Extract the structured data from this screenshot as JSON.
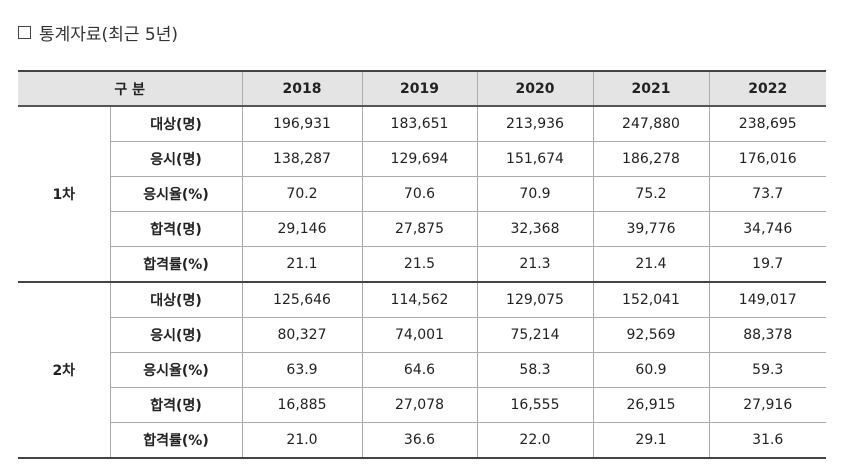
{
  "heading": "통계자료(최근 5년)",
  "table": {
    "header": {
      "category": "구 분",
      "years": [
        "2018",
        "2019",
        "2020",
        "2021",
        "2022"
      ]
    },
    "groups": [
      {
        "label": "1차",
        "rows": [
          {
            "label": "대상(명)",
            "values": [
              "196,931",
              "183,651",
              "213,936",
              "247,880",
              "238,695"
            ]
          },
          {
            "label": "응시(명)",
            "values": [
              "138,287",
              "129,694",
              "151,674",
              "186,278",
              "176,016"
            ]
          },
          {
            "label": "응시율(%)",
            "values": [
              "70.2",
              "70.6",
              "70.9",
              "75.2",
              "73.7"
            ]
          },
          {
            "label": "합격(명)",
            "values": [
              "29,146",
              "27,875",
              "32,368",
              "39,776",
              "34,746"
            ]
          },
          {
            "label": "합격률(%)",
            "values": [
              "21.1",
              "21.5",
              "21.3",
              "21.4",
              "19.7"
            ]
          }
        ]
      },
      {
        "label": "2차",
        "rows": [
          {
            "label": "대상(명)",
            "values": [
              "125,646",
              "114,562",
              "129,075",
              "152,041",
              "149,017"
            ]
          },
          {
            "label": "응시(명)",
            "values": [
              "80,327",
              "74,001",
              "75,214",
              "92,569",
              "88,378"
            ]
          },
          {
            "label": "응시율(%)",
            "values": [
              "63.9",
              "64.6",
              "58.3",
              "60.9",
              "59.3"
            ]
          },
          {
            "label": "합격(명)",
            "values": [
              "16,885",
              "27,078",
              "16,555",
              "26,915",
              "27,916"
            ]
          },
          {
            "label": "합격률(%)",
            "values": [
              "21.0",
              "36.6",
              "22.0",
              "29.1",
              "31.6"
            ]
          }
        ]
      }
    ]
  }
}
